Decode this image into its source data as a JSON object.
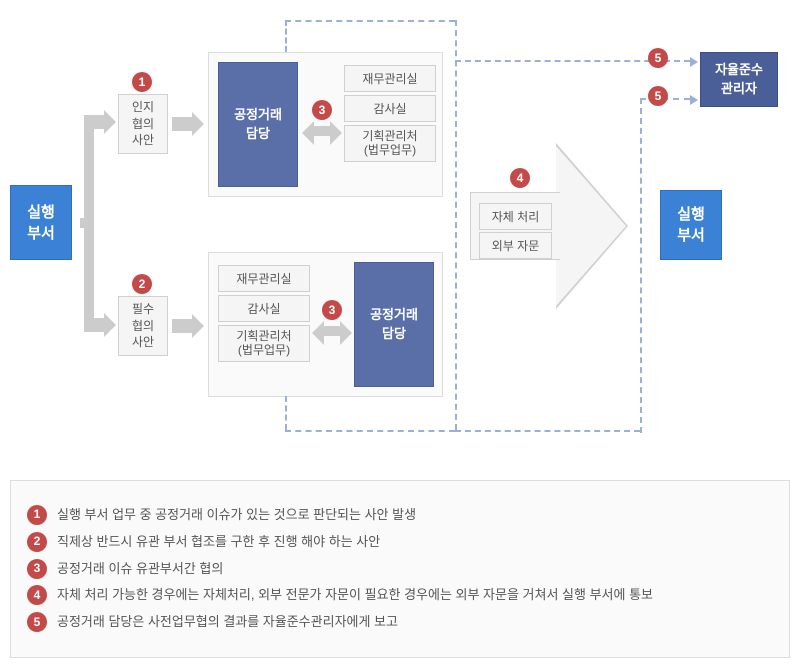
{
  "colors": {
    "blue": "#3b82d6",
    "navy": "#5a6fa8",
    "darknavy": "#4a5f98",
    "grey_bg": "#f5f5f5",
    "grey_border": "#d0d0d0",
    "panel_bg": "#fafafa",
    "badge": "#c44a4a",
    "dash": "#9ab0d8",
    "arrow_grey": "#cccccc"
  },
  "nodes": {
    "start": "실행\n부서",
    "end": "실행\n부서",
    "step1_label": "인지\n협의\n사안",
    "step2_label": "필수\n협의\n사안",
    "fair_trade": "공정거래\n담당",
    "dept_finance": "재무관리실",
    "dept_audit": "감사실",
    "dept_legal": "기획관리처\n(법무업무)",
    "step4_a": "자체 처리",
    "step4_b": "외부 자문",
    "compliance": "자율준수\n관리자"
  },
  "badges": {
    "b1": "1",
    "b2": "2",
    "b3": "3",
    "b4": "4",
    "b5": "5"
  },
  "legend": {
    "l1": "실행 부서 업무 중 공정거래 이슈가 있는 것으로 판단되는 사안 발생",
    "l2": "직제상 반드시 유관 부서 협조를 구한 후 진행 해야 하는 사안",
    "l3": "공정거래 이슈 유관부서간 협의",
    "l4": "자체 처리 가능한 경우에는 자체처리, 외부 전문가 자문이 필요한 경우에는 외부 자문을 거쳐서 실행 부서에 통보",
    "l5": "공정거래 담당은 사전업무협의 결과를 자율준수관리자에게 보고"
  }
}
